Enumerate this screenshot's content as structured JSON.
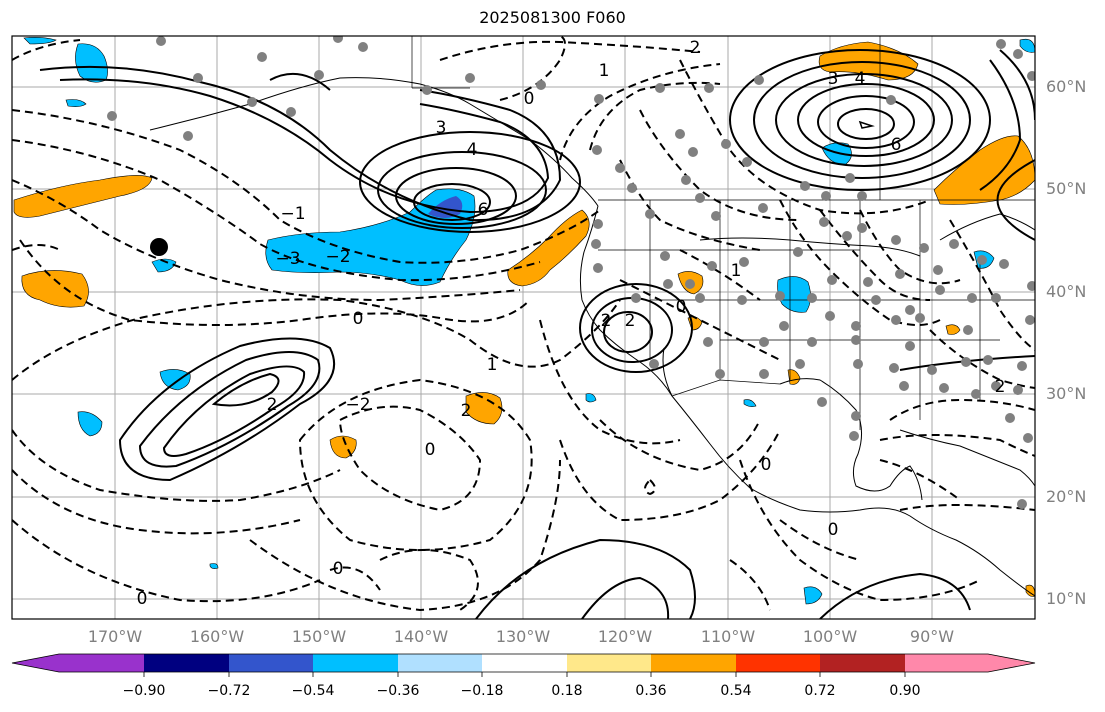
{
  "title": "2025081300 F060",
  "lat_labels": [
    "60°N",
    "50°N",
    "40°N",
    "30°N",
    "20°N",
    "10°N"
  ],
  "lon_labels": [
    "170°W",
    "160°W",
    "150°W",
    "140°W",
    "130°W",
    "120°W",
    "110°W",
    "100°W",
    "90°W"
  ],
  "colorbar": {
    "colors": [
      "#9932cc",
      "#000080",
      "#3355cc",
      "#00bfff",
      "#b0e0ff",
      "#ffffff",
      "#ffe88a",
      "#ffa500",
      "#ff3300",
      "#b22222",
      "#ff88aa"
    ],
    "labels": [
      "−0.90",
      "−0.72",
      "−0.54",
      "−0.36",
      "−0.18",
      "0.18",
      "0.36",
      "0.54",
      "0.72",
      "0.90"
    ]
  },
  "contour_labels": [
    "6",
    "4",
    "3",
    "2",
    "1",
    "0",
    "−1",
    "−2",
    "−3",
    "2",
    "2",
    "6",
    "4",
    "3",
    "0",
    "0",
    "1",
    "2",
    "0",
    "−2",
    "2",
    "0",
    "0",
    "0",
    "0",
    "2",
    "1"
  ],
  "point_marker": "black-dot"
}
